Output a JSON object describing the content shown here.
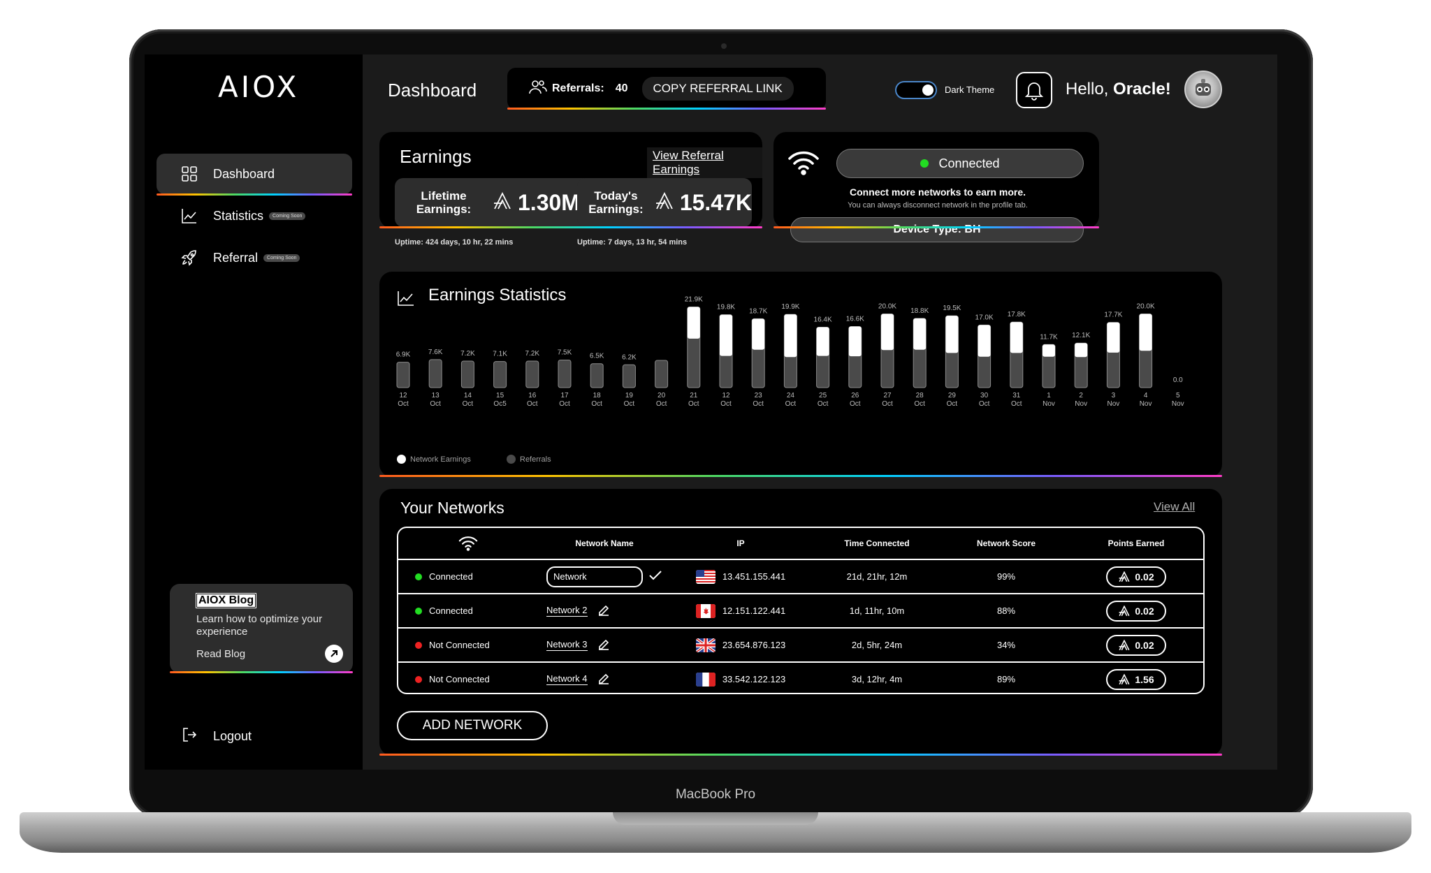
{
  "device_label": "MacBook Pro",
  "sidebar": {
    "logo": "AIOX",
    "items": [
      {
        "label": "Dashboard",
        "badge": ""
      },
      {
        "label": "Statistics",
        "badge": "Coming Soon"
      },
      {
        "label": "Referral",
        "badge": "Coming Soon"
      }
    ],
    "blog": {
      "title": "AIOX Blog",
      "text": "Learn how to optimize your experience",
      "link": "Read Blog"
    },
    "logout": "Logout"
  },
  "header": {
    "title": "Dashboard",
    "referrals_label": "Referrals:",
    "referrals_count": "40",
    "copy_link": "COPY REFERRAL LINK",
    "theme_label": "Dark Theme",
    "greeting": "Hello,",
    "user_name": "Oracle!"
  },
  "earnings": {
    "title": "Earnings",
    "link": "View Referral Earnings",
    "lifetime_label_1": "Lifetime",
    "lifetime_label_2": "Earnings:",
    "lifetime_value": "1.30M",
    "today_label_1": "Today's",
    "today_label_2": "Earnings:",
    "today_value": "15.47K",
    "uptime_lifetime": "Uptime: 424 days, 10 hr, 22 mins",
    "uptime_today": "Uptime: 7 days, 13 hr, 54 mins"
  },
  "connection": {
    "status": "Connected",
    "message": "Connect more networks to earn more.",
    "sub": "You can always disconnect network in the profile tab.",
    "device_type": "Device Type: BH",
    "status_color": "#22dd22"
  },
  "chart_data": {
    "type": "bar",
    "title": "Earnings Statistics",
    "series": [
      {
        "name": "Network Earnings",
        "color": "#ffffff"
      },
      {
        "name": "Referrals",
        "color": "#4a4a4a"
      }
    ],
    "categories": [
      [
        "12",
        "Oct"
      ],
      [
        "13",
        "Oct"
      ],
      [
        "14",
        "Oct"
      ],
      [
        "15",
        "Oc5"
      ],
      [
        "16",
        "Oct"
      ],
      [
        "17",
        "Oct"
      ],
      [
        "18",
        "Oct"
      ],
      [
        "19",
        "Oct"
      ],
      [
        "20",
        "Oct"
      ],
      [
        "21",
        "Oct"
      ],
      [
        "12",
        "Oct"
      ],
      [
        "23",
        "Oct"
      ],
      [
        "24",
        "Oct"
      ],
      [
        "25",
        "Oct"
      ],
      [
        "26",
        "Oct"
      ],
      [
        "27",
        "Oct"
      ],
      [
        "28",
        "Oct"
      ],
      [
        "29",
        "Oct"
      ],
      [
        "30",
        "Oct"
      ],
      [
        "31",
        "Oct"
      ],
      [
        "1",
        "Nov"
      ],
      [
        "2",
        "Nov"
      ],
      [
        "3",
        "Nov"
      ],
      [
        "4",
        "Nov"
      ],
      [
        "5",
        "Nov"
      ]
    ],
    "values": [
      6.9,
      7.6,
      7.2,
      7.1,
      7.2,
      7.5,
      6.5,
      6.2,
      7.4,
      21.9,
      19.8,
      18.7,
      19.9,
      16.4,
      16.6,
      20.0,
      18.8,
      19.5,
      17.0,
      17.8,
      11.7,
      12.1,
      17.7,
      20.0,
      0.0
    ],
    "value_labels": [
      "6.9K",
      "7.6K",
      "7.2K",
      "7.1K",
      "7.2K",
      "7.5K",
      "6.5K",
      "6.2K",
      "",
      "21.9K",
      "19.8K",
      "18.7K",
      "19.9K",
      "16.4K",
      "16.6K",
      "20.0K",
      "18.8K",
      "19.5K",
      "17.0K",
      "17.8K",
      "11.7K",
      "12.1K",
      "17.7K",
      "20.0K",
      "0.0"
    ],
    "network_earnings": [
      0,
      0,
      0,
      0,
      0,
      0,
      0,
      0,
      0,
      8.6,
      11.2,
      8.4,
      11.6,
      7.8,
      8.1,
      9.8,
      8.5,
      10.1,
      8.6,
      8.4,
      3.3,
      3.8,
      8.2,
      10.0,
      0
    ],
    "ylim": [
      0,
      22
    ],
    "legend": "bottom-left",
    "grid": false
  },
  "networks": {
    "title": "Your Networks",
    "view_all": "View All",
    "columns": [
      "Network Name",
      "IP",
      "Time Connected",
      "Network Score",
      "Points Earned"
    ],
    "rows": [
      {
        "status": "Connected",
        "status_color": "#22dd22",
        "name": "Network",
        "editing": true,
        "flag": "us",
        "ip": "13.451.155.441",
        "time": "21d, 21hr, 12m",
        "score": "99%",
        "points": "0.02"
      },
      {
        "status": "Connected",
        "status_color": "#22dd22",
        "name": "Network 2",
        "editing": false,
        "flag": "ca",
        "ip": "12.151.122.441",
        "time": "1d, 11hr, 10m",
        "score": "88%",
        "points": "0.02"
      },
      {
        "status": "Not Connected",
        "status_color": "#ee2222",
        "name": "Network 3",
        "editing": false,
        "flag": "gb",
        "ip": "23.654.876.123",
        "time": "2d, 5hr, 24m",
        "score": "34%",
        "points": "0.02"
      },
      {
        "status": "Not Connected",
        "status_color": "#ee2222",
        "name": "Network 4",
        "editing": false,
        "flag": "fr",
        "ip": "33.542.122.123",
        "time": "3d, 12hr, 4m",
        "score": "89%",
        "points": "1.56"
      }
    ],
    "add_button": "ADD NETWORK"
  }
}
